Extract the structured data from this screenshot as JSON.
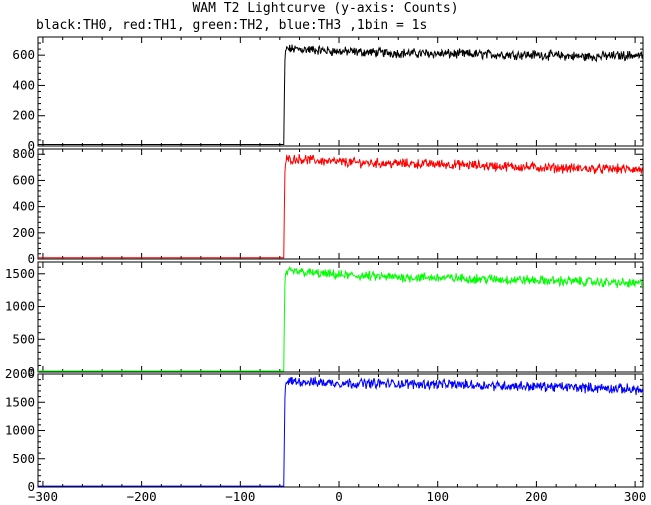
{
  "chart_data": {
    "type": "line",
    "title": "WAM T2 Lightcurve (y-axis: Counts)",
    "subtitle": "black:TH0, red:TH1, green:TH2, blue:TH3 ,1bin = 1s",
    "xlim": [
      -305,
      308
    ],
    "x_ticks": [
      -300,
      -200,
      -100,
      0,
      100,
      200,
      300
    ],
    "shared_x_axis": true,
    "panels": [
      {
        "series_name": "TH0",
        "color": "#000000",
        "ylim": [
          0,
          720
        ],
        "y_ticks": [
          0,
          200,
          400,
          600
        ],
        "points": [
          [
            -305,
            10
          ],
          [
            -56,
            10
          ],
          [
            -55,
            520
          ],
          [
            -54,
            640
          ],
          [
            -40,
            640
          ],
          [
            -20,
            632
          ],
          [
            0,
            625
          ],
          [
            50,
            615
          ],
          [
            100,
            610
          ],
          [
            150,
            605
          ],
          [
            200,
            602
          ],
          [
            250,
            590
          ],
          [
            300,
            600
          ],
          [
            308,
            595
          ]
        ]
      },
      {
        "series_name": "TH1",
        "color": "#ff0000",
        "ylim": [
          0,
          840
        ],
        "y_ticks": [
          0,
          200,
          400,
          600,
          800
        ],
        "points": [
          [
            -305,
            10
          ],
          [
            -56,
            10
          ],
          [
            -55,
            620
          ],
          [
            -54,
            760
          ],
          [
            -40,
            765
          ],
          [
            -20,
            750
          ],
          [
            0,
            740
          ],
          [
            50,
            730
          ],
          [
            100,
            725
          ],
          [
            150,
            712
          ],
          [
            200,
            700
          ],
          [
            250,
            690
          ],
          [
            300,
            685
          ],
          [
            308,
            680
          ]
        ]
      },
      {
        "series_name": "TH2",
        "color": "#00ff00",
        "ylim": [
          0,
          1680
        ],
        "y_ticks": [
          0,
          500,
          1000,
          1500
        ],
        "points": [
          [
            -305,
            15
          ],
          [
            -56,
            15
          ],
          [
            -55,
            1250
          ],
          [
            -54,
            1520
          ],
          [
            -40,
            1530
          ],
          [
            -20,
            1500
          ],
          [
            0,
            1480
          ],
          [
            50,
            1450
          ],
          [
            100,
            1440
          ],
          [
            150,
            1420
          ],
          [
            200,
            1400
          ],
          [
            250,
            1380
          ],
          [
            300,
            1350
          ],
          [
            308,
            1350
          ]
        ]
      },
      {
        "series_name": "TH3",
        "color": "#0000ff",
        "ylim": [
          0,
          2000
        ],
        "y_ticks": [
          0,
          500,
          1000,
          1500,
          2000
        ],
        "points": [
          [
            -305,
            15
          ],
          [
            -56,
            15
          ],
          [
            -55,
            1500
          ],
          [
            -54,
            1860
          ],
          [
            -40,
            1870
          ],
          [
            -20,
            1850
          ],
          [
            0,
            1840
          ],
          [
            50,
            1830
          ],
          [
            100,
            1820
          ],
          [
            150,
            1800
          ],
          [
            200,
            1780
          ],
          [
            250,
            1760
          ],
          [
            300,
            1730
          ],
          [
            308,
            1700
          ]
        ]
      }
    ],
    "noise_note_hidden": null
  }
}
